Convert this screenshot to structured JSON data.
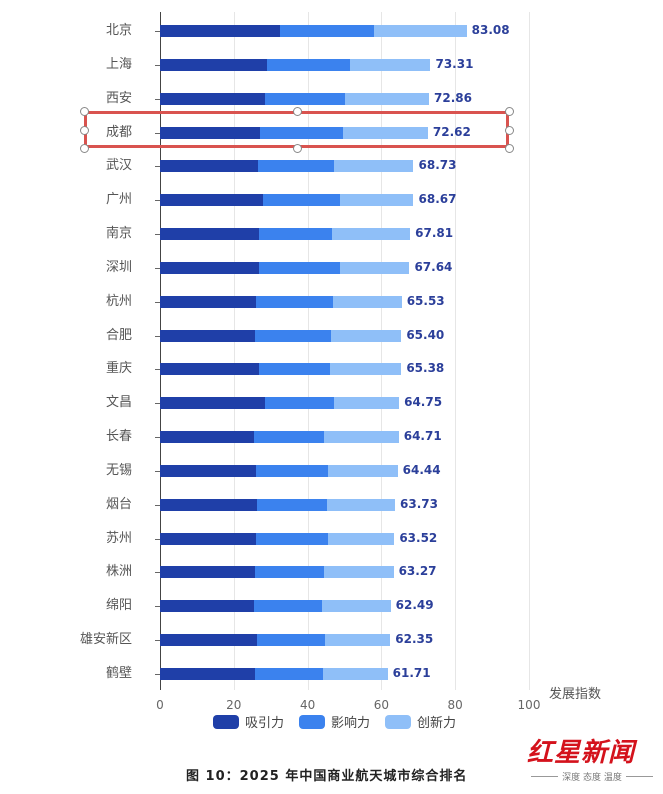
{
  "chart_data": {
    "type": "bar",
    "orientation": "horizontal",
    "stacked": true,
    "title": "图 10：2025 年中国商业航天城市综合排名",
    "xlabel": "发展指数",
    "ylabel": "",
    "xlim": [
      0,
      100
    ],
    "x_ticks": [
      "0",
      "20",
      "40",
      "60",
      "80",
      "100"
    ],
    "grid": true,
    "legend_position": "bottom",
    "categories": [
      "北京",
      "上海",
      "西安",
      "成都",
      "武汉",
      "广州",
      "南京",
      "深圳",
      "杭州",
      "合肥",
      "重庆",
      "文昌",
      "长春",
      "无锡",
      "烟台",
      "苏州",
      "株洲",
      "绵阳",
      "雄安新区",
      "鹤壁"
    ],
    "totals": [
      "83.08",
      "73.31",
      "72.86",
      "72.62",
      "68.73",
      "68.67",
      "67.81",
      "67.64",
      "65.53",
      "65.40",
      "65.38",
      "64.75",
      "64.71",
      "64.44",
      "63.73",
      "63.52",
      "63.27",
      "62.49",
      "62.35",
      "61.71"
    ],
    "series": [
      {
        "name": "吸引力",
        "color": "#1f3fa8",
        "values": [
          32.5,
          29.0,
          28.5,
          27.1,
          26.6,
          27.9,
          26.7,
          26.7,
          26.0,
          25.7,
          26.8,
          28.5,
          25.5,
          26.0,
          26.2,
          26.0,
          25.7,
          25.5,
          26.3,
          25.7
        ]
      },
      {
        "name": "影响力",
        "color": "#3b82ee",
        "values": [
          25.5,
          22.5,
          21.6,
          22.5,
          20.6,
          20.9,
          19.8,
          22.0,
          20.9,
          20.6,
          19.3,
          18.7,
          19.0,
          19.5,
          19.0,
          19.5,
          18.7,
          18.4,
          18.3,
          18.4
        ]
      },
      {
        "name": "创新力",
        "color": "#8fbff8",
        "values": [
          25.1,
          21.8,
          22.8,
          23.0,
          21.5,
          19.9,
          21.3,
          18.9,
          18.6,
          19.1,
          19.3,
          17.6,
          20.2,
          18.9,
          18.5,
          18.0,
          18.9,
          18.6,
          17.8,
          17.6
        ]
      }
    ],
    "highlight": {
      "category": "成都",
      "color": "#d9534f"
    }
  },
  "legend": [
    {
      "label": "吸引力",
      "color": "#1f3fa8"
    },
    {
      "label": "影响力",
      "color": "#3b82ee"
    },
    {
      "label": "创新力",
      "color": "#8fbff8"
    }
  ],
  "caption": "图 10：2025 年中国商业航天城市综合排名",
  "watermark": {
    "main": "红星新闻",
    "tagline": "深度 态度 温度",
    "color": "#d4121c"
  }
}
